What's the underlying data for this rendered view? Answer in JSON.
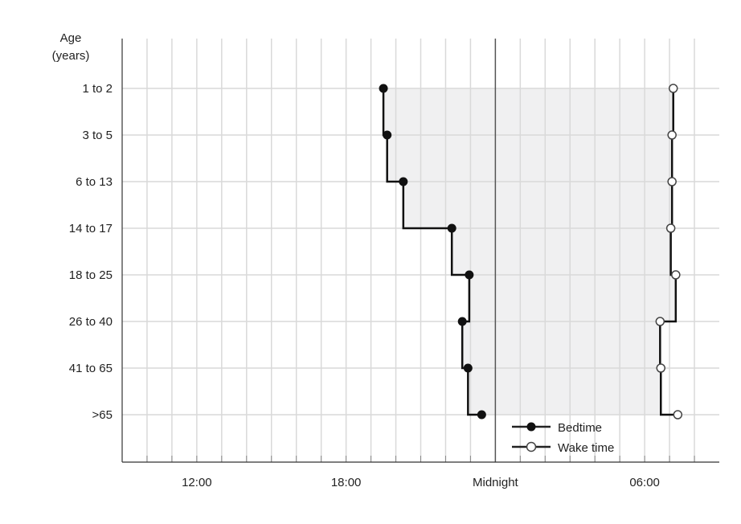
{
  "chart_data": {
    "type": "line",
    "title": "",
    "ylabel": [
      "Age",
      "(years)"
    ],
    "xlabel": "",
    "categories": [
      "1 to 2",
      "3 to 5",
      "6 to 13",
      "14 to 17",
      "18 to 25",
      "26 to 40",
      "41 to 65",
      ">65"
    ],
    "x_unit": "hours of clock time (values above 24 are the next morning)",
    "xlim": [
      9,
      33
    ],
    "x_ticks": [
      {
        "value": 12,
        "label": "12:00"
      },
      {
        "value": 18,
        "label": "18:00"
      },
      {
        "value": 24,
        "label": "Midnight"
      },
      {
        "value": 30,
        "label": "06:00"
      }
    ],
    "grid": true,
    "grid_step_hours": 1,
    "legend_position": "bottom-center",
    "shaded_between_series": true,
    "series": [
      {
        "name": "Bedtime",
        "marker": "filled-circle",
        "color": "#111111",
        "values": [
          19.5,
          19.65,
          20.3,
          22.25,
          22.95,
          22.67,
          22.9,
          23.45
        ]
      },
      {
        "name": "Wake time",
        "marker": "open-circle",
        "color": "#111111",
        "values": [
          31.15,
          31.1,
          31.1,
          31.05,
          31.25,
          30.62,
          30.65,
          31.33
        ]
      }
    ],
    "colors": {
      "shade": "#f0f0f1",
      "grid": "#d9d9d9",
      "midnight_line": "#555555",
      "axis": "#333333"
    }
  }
}
